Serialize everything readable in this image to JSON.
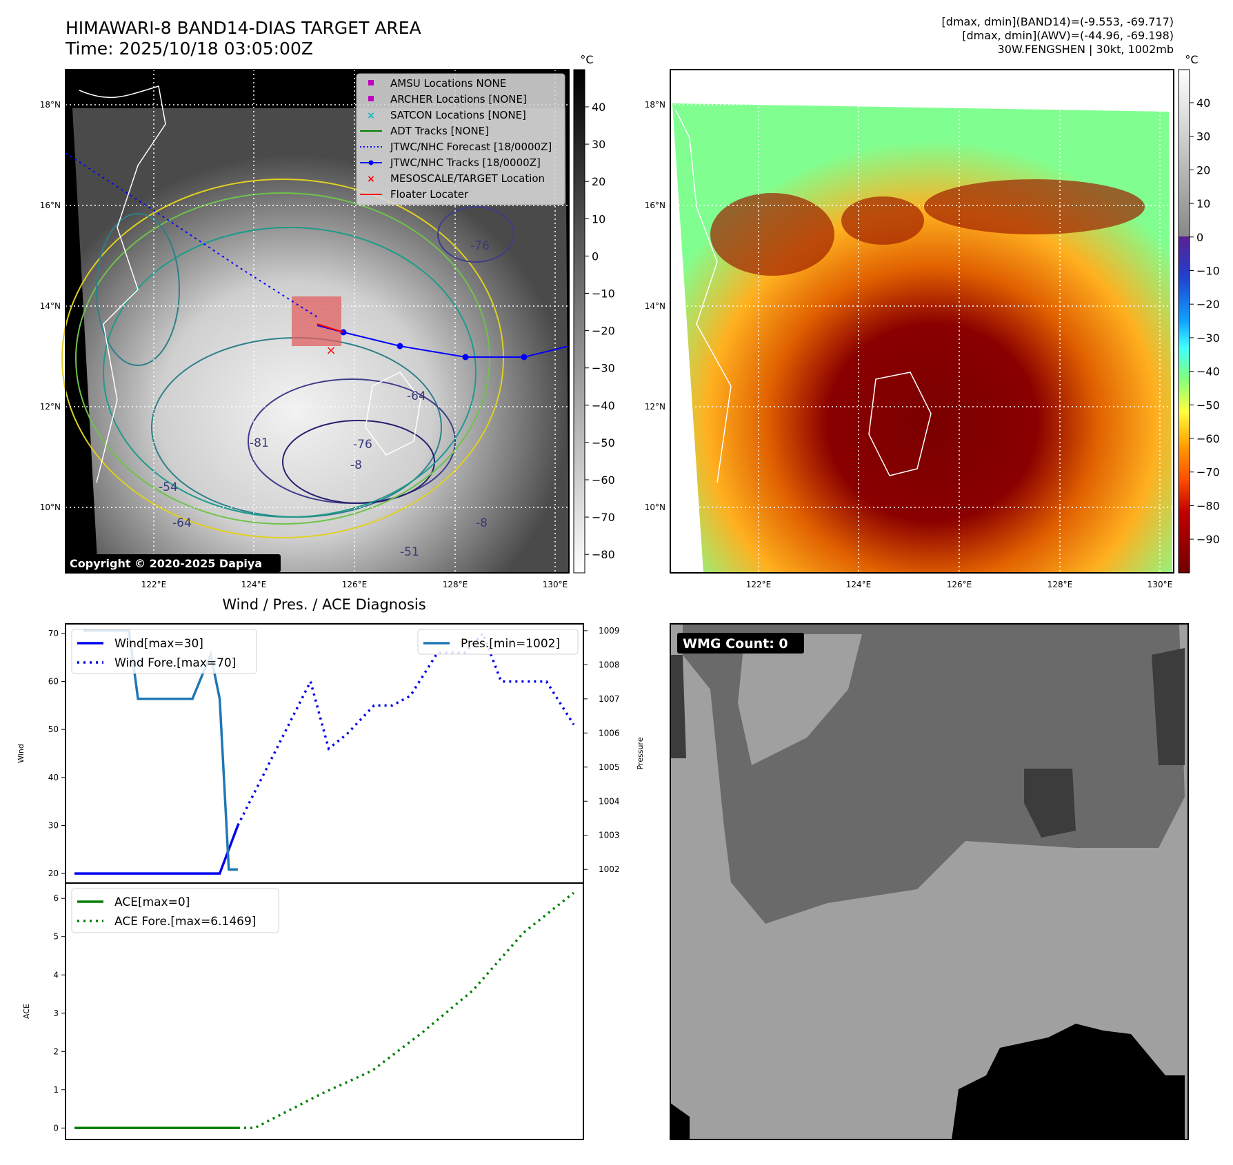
{
  "header": {
    "title_line1": "HIMAWARI-8 BAND14-DIAS TARGET AREA",
    "title_line2": "Time: 2025/10/18 03:05:00Z",
    "info_line1": "[dmax, dmin](BAND14)=(-9.553, -69.717)",
    "info_line2": "[dmax, dmin](AWV)=(-44.96, -69.198)",
    "info_line3": "30W.FENGSHEN | 30kt, 1002mb"
  },
  "map_left": {
    "lat_labels": [
      "18°N",
      "16°N",
      "14°N",
      "12°N",
      "10°N"
    ],
    "lon_labels": [
      "122°E",
      "124°E",
      "126°E",
      "128°E",
      "130°E"
    ],
    "legend": [
      {
        "label": "AMSU Locations NONE",
        "marker": "square",
        "color": "#c000c0"
      },
      {
        "label": "ARCHER Locations [NONE]",
        "marker": "square",
        "color": "#c000c0"
      },
      {
        "label": "SATCON Locations [NONE]",
        "marker": "x",
        "color": "#00bcbc"
      },
      {
        "label": "ADT Tracks [NONE]",
        "marker": "line",
        "color": "#008000"
      },
      {
        "label": "JTWC/NHC Forecast [18/0000Z]",
        "marker": "dotted",
        "color": "#0000ff"
      },
      {
        "label": "JTWC/NHC Tracks [18/0000Z]",
        "marker": "line-dot",
        "color": "#0000ff"
      },
      {
        "label": "MESOSCALE/TARGET Location",
        "marker": "x",
        "color": "#ff0000"
      },
      {
        "label": "Floater Locater",
        "marker": "line",
        "color": "#ff0000"
      }
    ],
    "contour_labels": [
      "-76",
      "-64",
      "-81",
      "-76",
      "-8",
      "-54",
      "-64",
      "-51",
      "-8"
    ],
    "copyright": "Copyright © 2020-2025 Dapiya",
    "colorbar": {
      "unit": "°C",
      "ticks": [
        "40",
        "30",
        "20",
        "10",
        "0",
        "−10",
        "−20",
        "−30",
        "−40",
        "−50",
        "−60",
        "−70",
        "−80"
      ]
    }
  },
  "map_right": {
    "lat_labels": [
      "18°N",
      "16°N",
      "14°N",
      "12°N",
      "10°N"
    ],
    "lon_labels": [
      "122°E",
      "124°E",
      "126°E",
      "128°E",
      "130°E"
    ],
    "colorbar": {
      "unit": "°C",
      "ticks": [
        "40",
        "30",
        "20",
        "10",
        "0",
        "−10",
        "−20",
        "−30",
        "−40",
        "−50",
        "−60",
        "−70",
        "−80",
        "−90"
      ]
    }
  },
  "wmg_panel": {
    "label": "WMG Count: 0"
  },
  "chart_data": [
    {
      "type": "line",
      "title": "Wind / Pres. / ACE Diagnosis",
      "ylabel": "Wind",
      "ylabel_right": "Pressure",
      "ylim": [
        18,
        72
      ],
      "ylim_right": [
        1001.6,
        1009.2
      ],
      "yticks": [
        "70",
        "60",
        "50",
        "40",
        "30",
        "20"
      ],
      "yticks_right": [
        "1009",
        "1008",
        "1007",
        "1006",
        "1005",
        "1004",
        "1003",
        "1002"
      ],
      "x_index_range": [
        0,
        38
      ],
      "legend_left": [
        "Wind[max=30]",
        "Wind Fore.[max=70]"
      ],
      "legend_right": [
        "Pres.[min=1002]"
      ],
      "series": [
        {
          "name": "Wind[max=30]",
          "axis": "left",
          "style": "solid",
          "color": "#0000ee",
          "x": [
            0,
            16,
            18
          ],
          "values": [
            20,
            20,
            30
          ]
        },
        {
          "name": "Wind Fore.[max=70]",
          "axis": "left",
          "style": "dotted",
          "color": "#0000ee",
          "x": [
            18,
            22,
            26,
            28,
            30,
            33,
            35,
            37,
            40,
            43,
            45,
            47,
            49,
            52,
            55
          ],
          "values": [
            30,
            45,
            60,
            46,
            49,
            55,
            55,
            57,
            66,
            66,
            70,
            60,
            60,
            60,
            51
          ]
        },
        {
          "name": "Pres.[min=1002]",
          "axis": "right",
          "style": "solid",
          "color": "#1f77b4",
          "x": [
            1,
            6,
            7,
            13,
            15,
            16,
            17,
            18
          ],
          "values": [
            1009,
            1009,
            1007,
            1007,
            1008.3,
            1007,
            1002,
            1002
          ]
        }
      ]
    },
    {
      "type": "line",
      "ylabel": "ACE",
      "ylim": [
        -0.3,
        6.4
      ],
      "yticks": [
        "6",
        "5",
        "4",
        "3",
        "2",
        "1",
        "0"
      ],
      "x_index_range": [
        0,
        38
      ],
      "legend": [
        "ACE[max=0]",
        "ACE Fore.[max=6.1469]"
      ],
      "series": [
        {
          "name": "ACE[max=0]",
          "style": "solid",
          "color": "#008000",
          "x": [
            0,
            18
          ],
          "values": [
            0,
            0
          ]
        },
        {
          "name": "ACE Fore.[max=6.1469]",
          "style": "dotted",
          "color": "#008000",
          "x": [
            18,
            19,
            23,
            26,
            29,
            32,
            35,
            38
          ],
          "values": [
            0,
            0,
            0.9,
            1.5,
            2.5,
            3.6,
            5.1,
            6.1469
          ]
        }
      ]
    }
  ]
}
